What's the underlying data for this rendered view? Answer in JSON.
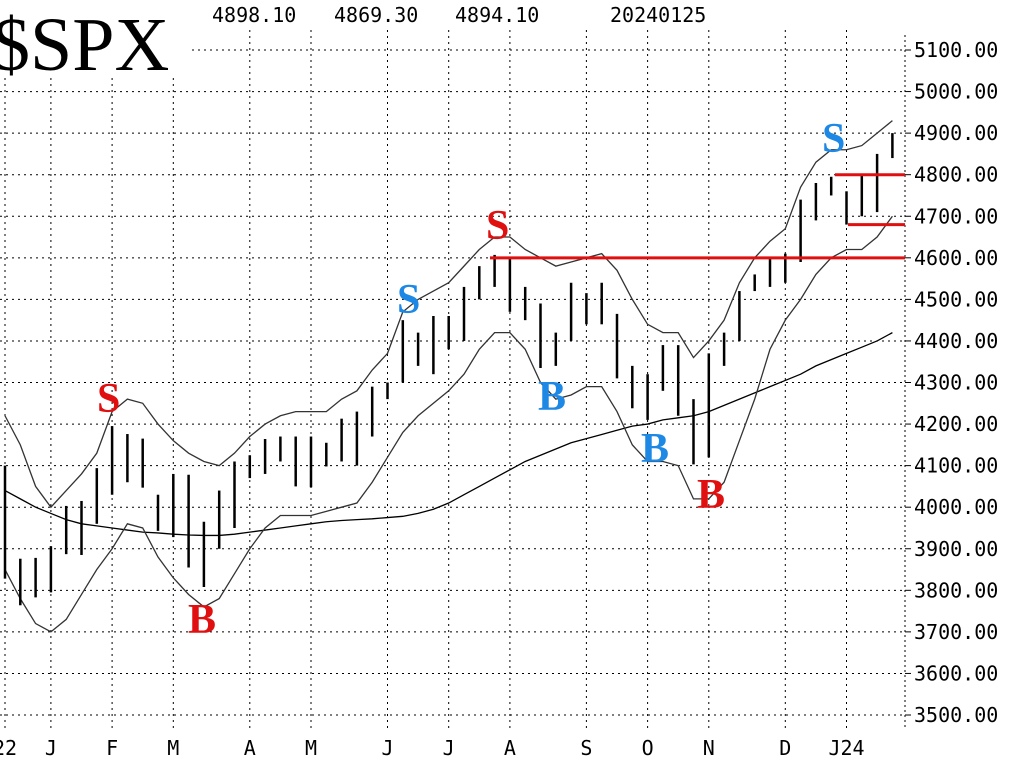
{
  "chart_data": {
    "type": "hilo",
    "title": "$SPX",
    "header_values": [
      "4898.10",
      "4869.30",
      "4894.10",
      "20240125"
    ],
    "categories": [
      "22",
      null,
      null,
      "J",
      null,
      null,
      null,
      "F",
      null,
      null,
      null,
      "M",
      null,
      null,
      null,
      null,
      "A",
      null,
      null,
      null,
      "M",
      null,
      null,
      null,
      null,
      "J",
      null,
      null,
      null,
      "J",
      null,
      null,
      null,
      "A",
      null,
      null,
      null,
      null,
      "S",
      null,
      null,
      null,
      "O",
      null,
      null,
      null,
      "N",
      null,
      null,
      null,
      null,
      "D",
      null,
      null,
      null,
      "J24",
      null,
      null,
      null
    ],
    "high": [
      4100,
      3876,
      3878,
      3906,
      4003,
      4015,
      4094,
      4195,
      4176,
      4165,
      4030,
      4080,
      4078,
      3965,
      4040,
      4110,
      4125,
      4164,
      4170,
      4170,
      4170,
      4155,
      4213,
      4230,
      4290,
      4300,
      4450,
      4420,
      4460,
      4460,
      4530,
      4580,
      4607,
      4600,
      4530,
      4490,
      4420,
      4540,
      4515,
      4540,
      4465,
      4340,
      4320,
      4390,
      4390,
      4260,
      4370,
      4420,
      4520,
      4560,
      4600,
      4610,
      4740,
      4780,
      4795,
      4760,
      4800,
      4850,
      4900
    ],
    "low": [
      3828,
      3764,
      3783,
      3795,
      3887,
      3885,
      3960,
      4030,
      4060,
      4047,
      3943,
      3928,
      3855,
      3808,
      3900,
      3950,
      4070,
      4080,
      4110,
      4050,
      4048,
      4098,
      4110,
      4100,
      4170,
      4260,
      4300,
      4340,
      4320,
      4380,
      4400,
      4500,
      4530,
      4470,
      4450,
      4335,
      4340,
      4400,
      4440,
      4440,
      4310,
      4238,
      4210,
      4280,
      4220,
      4103,
      4120,
      4340,
      4400,
      4520,
      4530,
      4540,
      4590,
      4690,
      4750,
      4680,
      4700,
      4710,
      4840
    ],
    "bar_color": "#000000",
    "lines": [
      {
        "color": "#000000",
        "values": [
          4040,
          4020,
          4000,
          3985,
          3970,
          3960,
          3955,
          3950,
          3945,
          3940,
          3938,
          3935,
          3933,
          3932,
          3932,
          3935,
          3940,
          3945,
          3950,
          3955,
          3960,
          3965,
          3968,
          3970,
          3972,
          3975,
          3978,
          3985,
          3995,
          4010,
          4030,
          4050,
          4070,
          4090,
          4110,
          4125,
          4140,
          4155,
          4165,
          4175,
          4185,
          4195,
          4200,
          4210,
          4215,
          4220,
          4230,
          4245,
          4260,
          4275,
          4290,
          4305,
          4320,
          4340,
          4355,
          4370,
          4385,
          4400,
          4420
        ]
      },
      {
        "color": "#333333",
        "values": [
          4220,
          4150,
          4050,
          4000,
          4040,
          4080,
          4130,
          4230,
          4260,
          4250,
          4200,
          4160,
          4130,
          4110,
          4100,
          4130,
          4170,
          4200,
          4220,
          4230,
          4230,
          4230,
          4260,
          4280,
          4330,
          4370,
          4470,
          4500,
          4520,
          4540,
          4580,
          4620,
          4650,
          4650,
          4620,
          4600,
          4580,
          4590,
          4600,
          4610,
          4570,
          4500,
          4440,
          4420,
          4420,
          4360,
          4400,
          4450,
          4540,
          4600,
          4640,
          4670,
          4770,
          4830,
          4860,
          4860,
          4870,
          4900,
          4930
        ]
      },
      {
        "color": "#333333",
        "values": [
          3850,
          3780,
          3720,
          3700,
          3730,
          3790,
          3850,
          3900,
          3960,
          3950,
          3880,
          3830,
          3790,
          3760,
          3780,
          3840,
          3900,
          3950,
          3980,
          3980,
          3980,
          3990,
          4000,
          4010,
          4060,
          4120,
          4180,
          4220,
          4250,
          4280,
          4320,
          4380,
          4420,
          4420,
          4380,
          4300,
          4260,
          4270,
          4290,
          4290,
          4230,
          4150,
          4110,
          4110,
          4100,
          4020,
          4020,
          4060,
          4160,
          4260,
          4380,
          4450,
          4500,
          4560,
          4600,
          4620,
          4620,
          4650,
          4700
        ]
      }
    ],
    "reference_lines": [
      {
        "value": 4600,
        "color": "#e01010"
      },
      {
        "value": 4800,
        "color": "#e01010"
      },
      {
        "value": 4680,
        "color": "#e01010"
      }
    ],
    "annotations": [
      {
        "text": "S",
        "color": "#e01010"
      },
      {
        "text": "B",
        "color": "#e01010"
      },
      {
        "text": "S",
        "color": "#1e88e5"
      },
      {
        "text": "S",
        "color": "#e01010"
      },
      {
        "text": "B",
        "color": "#1e88e5"
      },
      {
        "text": "B",
        "color": "#1e88e5"
      },
      {
        "text": "B",
        "color": "#e01010"
      },
      {
        "text": "S",
        "color": "#1e88e5"
      }
    ],
    "ylim": [
      3500,
      5100
    ],
    "yticks": [
      {
        "value": 3500,
        "label": "3500.00"
      },
      {
        "value": 3600,
        "label": "3600.00"
      },
      {
        "value": 3700,
        "label": "3700.00"
      },
      {
        "value": 3800,
        "label": "3800.00"
      },
      {
        "value": 3900,
        "label": "3900.00"
      },
      {
        "value": 4000,
        "label": "4000.00"
      },
      {
        "value": 4100,
        "label": "4100.00"
      },
      {
        "value": 4200,
        "label": "4200.00"
      },
      {
        "value": 4300,
        "label": "4300.00"
      },
      {
        "value": 4400,
        "label": "4400.00"
      },
      {
        "value": 4500,
        "label": "4500.00"
      },
      {
        "value": 4600,
        "label": "4600.00"
      },
      {
        "value": 4700,
        "label": "4700.00"
      },
      {
        "value": 4800,
        "label": "4800.00"
      },
      {
        "value": 4900,
        "label": "4900.00"
      },
      {
        "value": 5000,
        "label": "5000.00"
      },
      {
        "value": 5100,
        "label": "5100.00"
      }
    ],
    "grid": true
  }
}
